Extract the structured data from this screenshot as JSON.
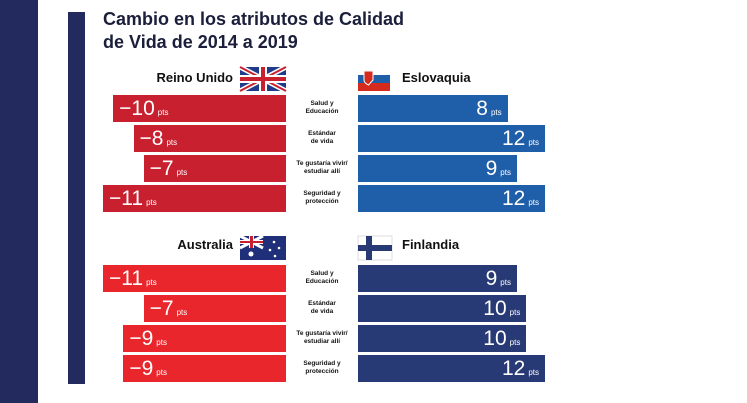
{
  "chart_data": [
    {
      "type": "bar",
      "title": "Cambio en los atributos de Calidad\nde Vida de 2014 a 2019",
      "unit": "pts",
      "categories": [
        "Salud y\nEducación",
        "Estándar\nde vida",
        "Te gustaría vivir/\nestudiar allí",
        "Seguridad y\nprotección"
      ],
      "series": [
        {
          "name": "Reino Unido",
          "color": "#c8202f",
          "values": [
            -10,
            -8,
            -7,
            -11
          ],
          "value_labels": [
            "−10",
            "−8",
            "−7",
            "−11"
          ],
          "xlim": [
            -11,
            7
          ]
        },
        {
          "name": "Eslovaquia",
          "color": "#1f5ea8",
          "values": [
            8,
            12,
            9,
            12
          ],
          "xlim": [
            -8,
            12
          ]
        }
      ]
    },
    {
      "type": "bar",
      "unit": "pts",
      "categories": [
        "Salud y\nEducación",
        "Estándar\nde vida",
        "Te gustaría vivir/\nestudiar allí",
        "Seguridad y\nprotección"
      ],
      "series": [
        {
          "name": "Australia",
          "color": "#e8262b",
          "values": [
            -11,
            -7,
            -9,
            -9
          ],
          "value_labels": [
            "−11",
            "−7",
            "−9",
            "−9"
          ],
          "xlim": [
            -11,
            7
          ]
        },
        {
          "name": "Finlandia",
          "color": "#283a75",
          "values": [
            9,
            10,
            10,
            12
          ],
          "xlim": [
            -8,
            12
          ]
        }
      ]
    }
  ]
}
